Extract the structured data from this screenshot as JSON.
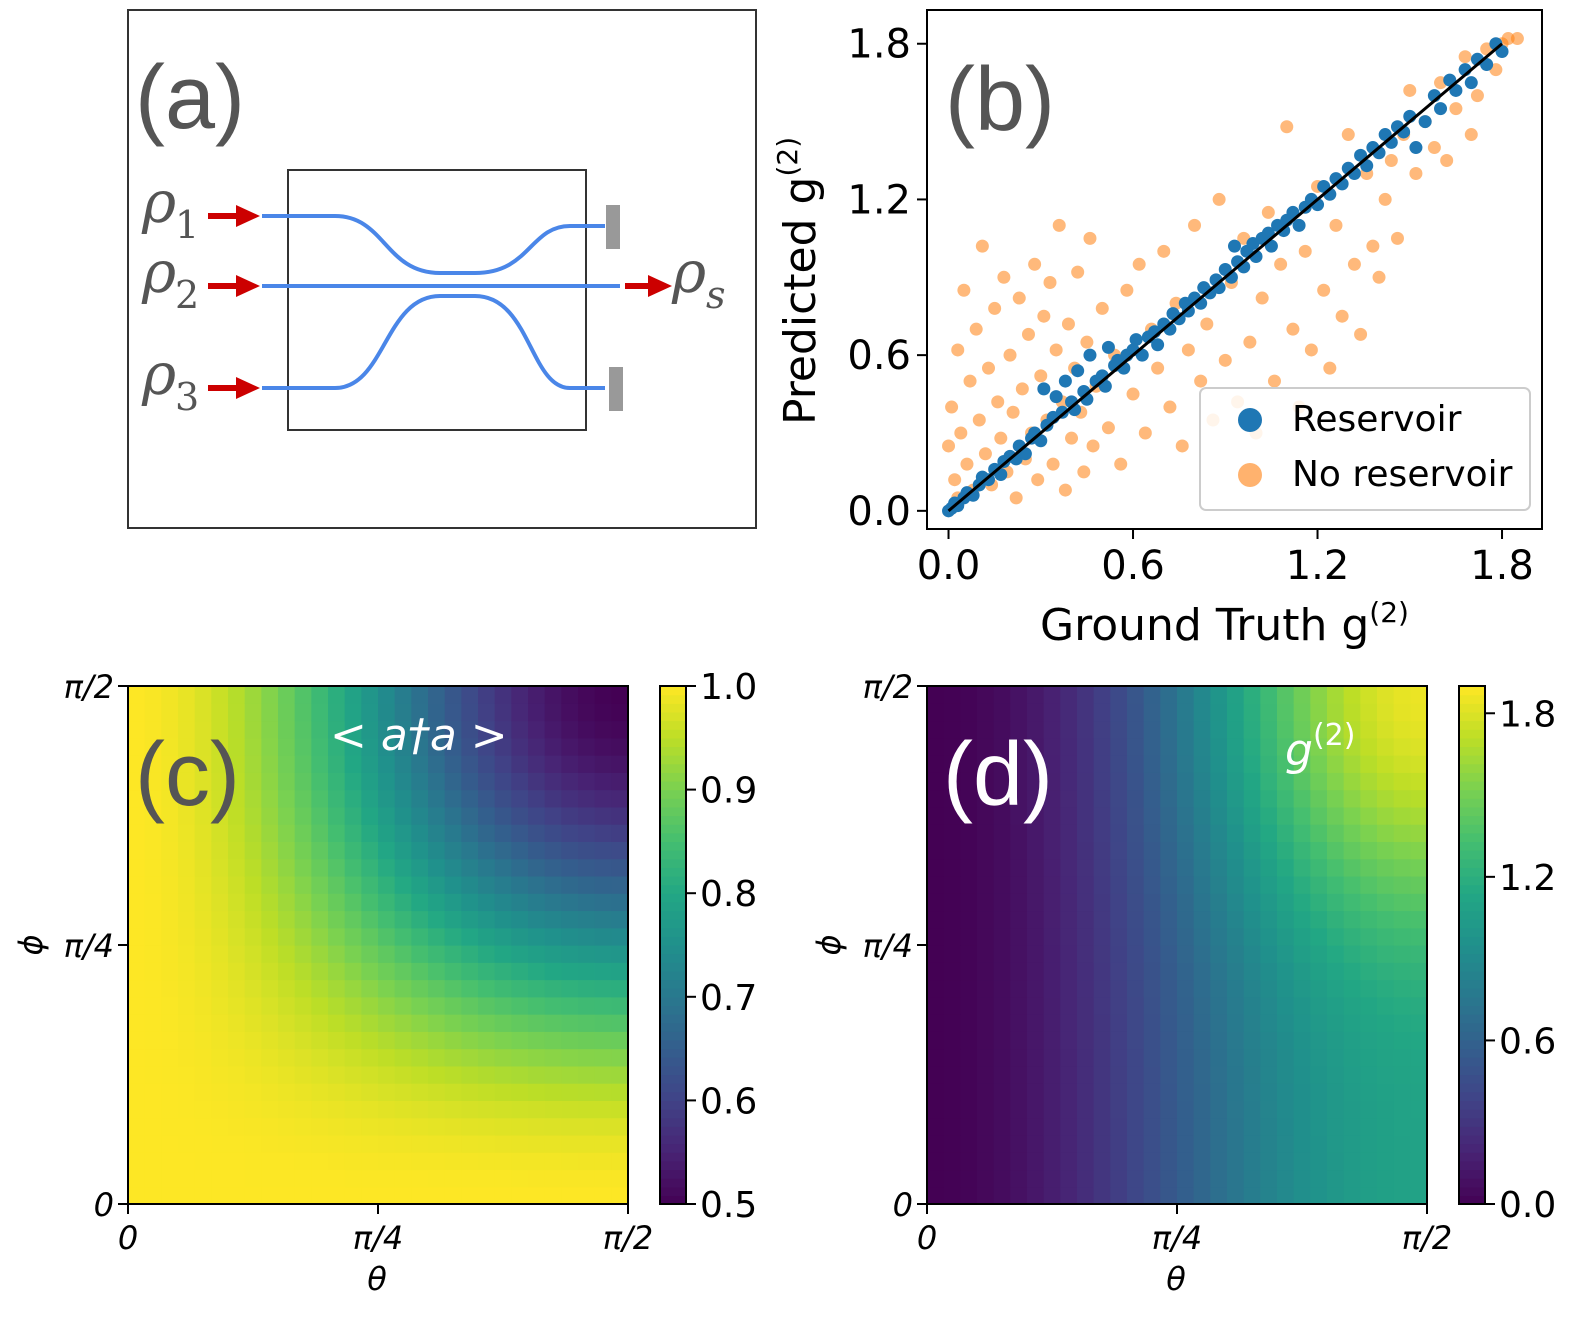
{
  "colors": {
    "reservoir": "#1f77b4",
    "no_reservoir": "#ff7f0e",
    "waveguide": "#4a86e8",
    "arrow": "#cc0000",
    "detector": "#999999",
    "label_gray": "#555555"
  },
  "panel_a": {
    "label": "(a)",
    "inputs": [
      {
        "symbol": "ρ",
        "subscript": "1"
      },
      {
        "symbol": "ρ",
        "subscript": "2"
      },
      {
        "symbol": "ρ",
        "subscript": "3"
      }
    ],
    "output": {
      "symbol": "ρ",
      "subscript": "s"
    }
  },
  "chart_data": [
    {
      "panel": "(b)",
      "type": "scatter",
      "title": "",
      "xlabel": "Ground Truth g",
      "xlabel_sup": "(2)",
      "ylabel": "Predicted g",
      "ylabel_sup": "(2)",
      "xlim": [
        -0.07,
        1.93
      ],
      "ylim": [
        -0.07,
        1.93
      ],
      "xticks": [
        0.0,
        0.6,
        1.2,
        1.8
      ],
      "yticks": [
        0.0,
        0.6,
        1.2,
        1.8
      ],
      "xtick_labels": [
        "0.0",
        "0.6",
        "1.2",
        "1.8"
      ],
      "ytick_labels": [
        "0.0",
        "0.6",
        "1.2",
        "1.8"
      ],
      "reference_line": {
        "from": [
          0,
          0
        ],
        "to": [
          1.8,
          1.8
        ]
      },
      "legend": {
        "position": "lower-right",
        "entries": [
          "Reservoir",
          "No reservoir"
        ]
      },
      "series": [
        {
          "name": "Reservoir",
          "points": [
            [
              0.0,
              0.0
            ],
            [
              0.01,
              0.01
            ],
            [
              0.02,
              0.03
            ],
            [
              0.03,
              0.02
            ],
            [
              0.05,
              0.05
            ],
            [
              0.06,
              0.07
            ],
            [
              0.08,
              0.06
            ],
            [
              0.1,
              0.1
            ],
            [
              0.11,
              0.13
            ],
            [
              0.13,
              0.12
            ],
            [
              0.15,
              0.16
            ],
            [
              0.17,
              0.14
            ],
            [
              0.18,
              0.19
            ],
            [
              0.2,
              0.21
            ],
            [
              0.22,
              0.2
            ],
            [
              0.23,
              0.25
            ],
            [
              0.25,
              0.22
            ],
            [
              0.27,
              0.28
            ],
            [
              0.28,
              0.3
            ],
            [
              0.3,
              0.27
            ],
            [
              0.31,
              0.47
            ],
            [
              0.32,
              0.33
            ],
            [
              0.34,
              0.36
            ],
            [
              0.35,
              0.44
            ],
            [
              0.37,
              0.38
            ],
            [
              0.38,
              0.5
            ],
            [
              0.4,
              0.42
            ],
            [
              0.41,
              0.39
            ],
            [
              0.42,
              0.54
            ],
            [
              0.44,
              0.46
            ],
            [
              0.45,
              0.43
            ],
            [
              0.46,
              0.6
            ],
            [
              0.48,
              0.5
            ],
            [
              0.5,
              0.52
            ],
            [
              0.51,
              0.48
            ],
            [
              0.52,
              0.63
            ],
            [
              0.54,
              0.56
            ],
            [
              0.55,
              0.58
            ],
            [
              0.57,
              0.55
            ],
            [
              0.58,
              0.6
            ],
            [
              0.6,
              0.62
            ],
            [
              0.61,
              0.66
            ],
            [
              0.63,
              0.6
            ],
            [
              0.65,
              0.67
            ],
            [
              0.67,
              0.69
            ],
            [
              0.68,
              0.64
            ],
            [
              0.7,
              0.72
            ],
            [
              0.72,
              0.7
            ],
            [
              0.73,
              0.76
            ],
            [
              0.75,
              0.74
            ],
            [
              0.77,
              0.8
            ],
            [
              0.78,
              0.77
            ],
            [
              0.8,
              0.82
            ],
            [
              0.82,
              0.8
            ],
            [
              0.83,
              0.86
            ],
            [
              0.85,
              0.84
            ],
            [
              0.87,
              0.89
            ],
            [
              0.88,
              0.86
            ],
            [
              0.9,
              0.93
            ],
            [
              0.92,
              0.9
            ],
            [
              0.93,
              1.02
            ],
            [
              0.94,
              0.96
            ],
            [
              0.96,
              0.94
            ],
            [
              0.97,
              1.0
            ],
            [
              0.99,
              1.03
            ],
            [
              1.0,
              0.98
            ],
            [
              1.02,
              1.05
            ],
            [
              1.04,
              1.07
            ],
            [
              1.05,
              1.02
            ],
            [
              1.07,
              1.1
            ],
            [
              1.09,
              1.08
            ],
            [
              1.1,
              1.12
            ],
            [
              1.12,
              1.15
            ],
            [
              1.14,
              1.1
            ],
            [
              1.16,
              1.17
            ],
            [
              1.18,
              1.2
            ],
            [
              1.2,
              1.18
            ],
            [
              1.22,
              1.25
            ],
            [
              1.24,
              1.22
            ],
            [
              1.26,
              1.28
            ],
            [
              1.28,
              1.26
            ],
            [
              1.3,
              1.32
            ],
            [
              1.32,
              1.3
            ],
            [
              1.34,
              1.37
            ],
            [
              1.36,
              1.33
            ],
            [
              1.38,
              1.4
            ],
            [
              1.4,
              1.38
            ],
            [
              1.42,
              1.45
            ],
            [
              1.44,
              1.42
            ],
            [
              1.46,
              1.48
            ],
            [
              1.48,
              1.46
            ],
            [
              1.5,
              1.52
            ],
            [
              1.52,
              1.4
            ],
            [
              1.55,
              1.5
            ],
            [
              1.58,
              1.6
            ],
            [
              1.6,
              1.55
            ],
            [
              1.63,
              1.66
            ],
            [
              1.65,
              1.62
            ],
            [
              1.68,
              1.7
            ],
            [
              1.7,
              1.65
            ],
            [
              1.72,
              1.74
            ],
            [
              1.75,
              1.72
            ],
            [
              1.78,
              1.8
            ],
            [
              1.8,
              1.77
            ]
          ]
        },
        {
          "name": "No reservoir",
          "points": [
            [
              0.0,
              0.25
            ],
            [
              0.01,
              0.4
            ],
            [
              0.02,
              0.12
            ],
            [
              0.03,
              0.62
            ],
            [
              0.03,
              0.05
            ],
            [
              0.04,
              0.3
            ],
            [
              0.05,
              0.85
            ],
            [
              0.06,
              0.18
            ],
            [
              0.07,
              0.5
            ],
            [
              0.08,
              0.08
            ],
            [
              0.09,
              0.7
            ],
            [
              0.1,
              0.35
            ],
            [
              0.11,
              1.02
            ],
            [
              0.12,
              0.22
            ],
            [
              0.13,
              0.55
            ],
            [
              0.14,
              0.1
            ],
            [
              0.15,
              0.78
            ],
            [
              0.16,
              0.42
            ],
            [
              0.17,
              0.28
            ],
            [
              0.18,
              0.9
            ],
            [
              0.19,
              0.15
            ],
            [
              0.2,
              0.6
            ],
            [
              0.21,
              0.38
            ],
            [
              0.22,
              0.05
            ],
            [
              0.23,
              0.82
            ],
            [
              0.24,
              0.47
            ],
            [
              0.25,
              0.2
            ],
            [
              0.26,
              0.68
            ],
            [
              0.27,
              0.3
            ],
            [
              0.28,
              0.95
            ],
            [
              0.29,
              0.12
            ],
            [
              0.3,
              0.52
            ],
            [
              0.31,
              0.75
            ],
            [
              0.32,
              0.35
            ],
            [
              0.33,
              0.88
            ],
            [
              0.34,
              0.18
            ],
            [
              0.35,
              0.62
            ],
            [
              0.36,
              1.1
            ],
            [
              0.37,
              0.42
            ],
            [
              0.38,
              0.08
            ],
            [
              0.39,
              0.72
            ],
            [
              0.4,
              0.28
            ],
            [
              0.41,
              0.55
            ],
            [
              0.42,
              0.92
            ],
            [
              0.43,
              0.38
            ],
            [
              0.44,
              0.15
            ],
            [
              0.45,
              0.65
            ],
            [
              0.46,
              1.05
            ],
            [
              0.47,
              0.25
            ],
            [
              0.48,
              0.48
            ],
            [
              0.5,
              0.78
            ],
            [
              0.52,
              0.32
            ],
            [
              0.54,
              0.6
            ],
            [
              0.56,
              0.18
            ],
            [
              0.58,
              0.85
            ],
            [
              0.6,
              0.45
            ],
            [
              0.62,
              0.95
            ],
            [
              0.64,
              0.3
            ],
            [
              0.66,
              0.7
            ],
            [
              0.68,
              0.55
            ],
            [
              0.7,
              1.0
            ],
            [
              0.72,
              0.4
            ],
            [
              0.74,
              0.8
            ],
            [
              0.76,
              0.25
            ],
            [
              0.78,
              0.62
            ],
            [
              0.8,
              1.1
            ],
            [
              0.82,
              0.5
            ],
            [
              0.84,
              0.72
            ],
            [
              0.86,
              0.35
            ],
            [
              0.88,
              1.2
            ],
            [
              0.9,
              0.58
            ],
            [
              0.92,
              0.88
            ],
            [
              0.94,
              0.42
            ],
            [
              0.96,
              1.05
            ],
            [
              0.98,
              0.65
            ],
            [
              1.0,
              0.3
            ],
            [
              1.02,
              0.82
            ],
            [
              1.04,
              1.15
            ],
            [
              1.06,
              0.5
            ],
            [
              1.08,
              0.95
            ],
            [
              1.1,
              1.48
            ],
            [
              1.12,
              0.7
            ],
            [
              1.14,
              0.4
            ],
            [
              1.16,
              1.0
            ],
            [
              1.18,
              0.62
            ],
            [
              1.2,
              1.25
            ],
            [
              1.22,
              0.85
            ],
            [
              1.24,
              0.55
            ],
            [
              1.26,
              1.1
            ],
            [
              1.28,
              0.75
            ],
            [
              1.3,
              1.45
            ],
            [
              1.32,
              0.95
            ],
            [
              1.34,
              0.68
            ],
            [
              1.36,
              1.3
            ],
            [
              1.38,
              1.02
            ],
            [
              1.4,
              0.9
            ],
            [
              1.42,
              1.2
            ],
            [
              1.44,
              1.35
            ],
            [
              1.46,
              1.05
            ],
            [
              1.48,
              1.45
            ],
            [
              1.5,
              1.62
            ],
            [
              1.52,
              1.3
            ],
            [
              1.55,
              1.5
            ],
            [
              1.58,
              1.4
            ],
            [
              1.6,
              1.65
            ],
            [
              1.62,
              1.35
            ],
            [
              1.65,
              1.55
            ],
            [
              1.68,
              1.75
            ],
            [
              1.7,
              1.45
            ],
            [
              1.72,
              1.6
            ],
            [
              1.75,
              1.78
            ],
            [
              1.78,
              1.7
            ],
            [
              1.8,
              1.8
            ],
            [
              1.82,
              1.82
            ],
            [
              1.85,
              1.82
            ]
          ]
        }
      ]
    },
    {
      "panel": "(c)",
      "type": "heatmap",
      "annotation": "< a†a >",
      "xlabel": "θ",
      "ylabel": "ϕ",
      "xtick_labels": [
        "0",
        "π/4",
        "π/2"
      ],
      "ytick_labels": [
        "0",
        "π/4",
        "π/2"
      ],
      "xlim": [
        0,
        1.5708
      ],
      "ylim": [
        0,
        1.5708
      ],
      "colorbar": {
        "min": 0.5,
        "max": 1.0,
        "ticks": [
          0.5,
          0.6,
          0.7,
          0.8,
          0.9,
          1.0
        ],
        "tick_labels": [
          "0.5",
          "0.6",
          "0.7",
          "0.8",
          "0.9",
          "1.0"
        ],
        "colormap": "viridis"
      },
      "grid_size": 30,
      "function": "1 - 0.5*sin(theta)^2*sin(phi)^2"
    },
    {
      "panel": "(d)",
      "type": "heatmap",
      "annotation": "g",
      "annotation_sup": "(2)",
      "xlabel": "θ",
      "ylabel": "ϕ",
      "xtick_labels": [
        "0",
        "π/4",
        "π/2"
      ],
      "ytick_labels": [
        "0",
        "π/4",
        "π/2"
      ],
      "xlim": [
        0,
        1.5708
      ],
      "ylim": [
        0,
        1.5708
      ],
      "colorbar": {
        "min": 0.0,
        "max": 1.9,
        "ticks": [
          0.0,
          0.6,
          1.2,
          1.8
        ],
        "tick_labels": [
          "0.0",
          "0.6",
          "1.2",
          "1.8"
        ],
        "colormap": "viridis"
      },
      "grid_size": 30,
      "function": "1.1*sin(theta)^2 + 0.75*sin(theta)^4*sin(phi)^4"
    }
  ]
}
